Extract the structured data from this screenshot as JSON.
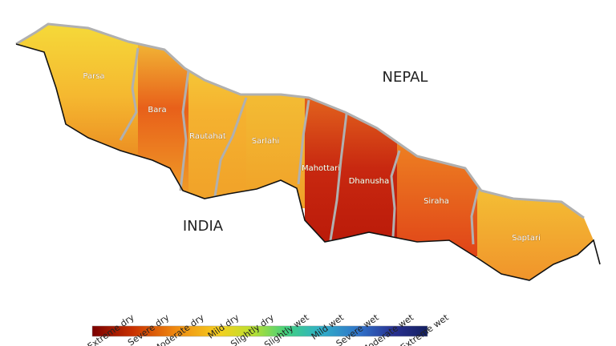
{
  "map": {
    "countries": [
      "NEPAL",
      "INDIA"
    ],
    "districts": [
      "Parsa",
      "Bara",
      "Rautahat",
      "Sarlahi",
      "Mahottari",
      "Dhanusha",
      "Siraha",
      "Saptari"
    ],
    "legend": {
      "labels": [
        "Extreme dry",
        "Severe dry",
        "Moderate dry",
        "Mild dry",
        "Slightly dry",
        "Slightly wet",
        "Mild wet",
        "Severe wet",
        "Moderate wet",
        "Extreme wet"
      ]
    }
  }
}
